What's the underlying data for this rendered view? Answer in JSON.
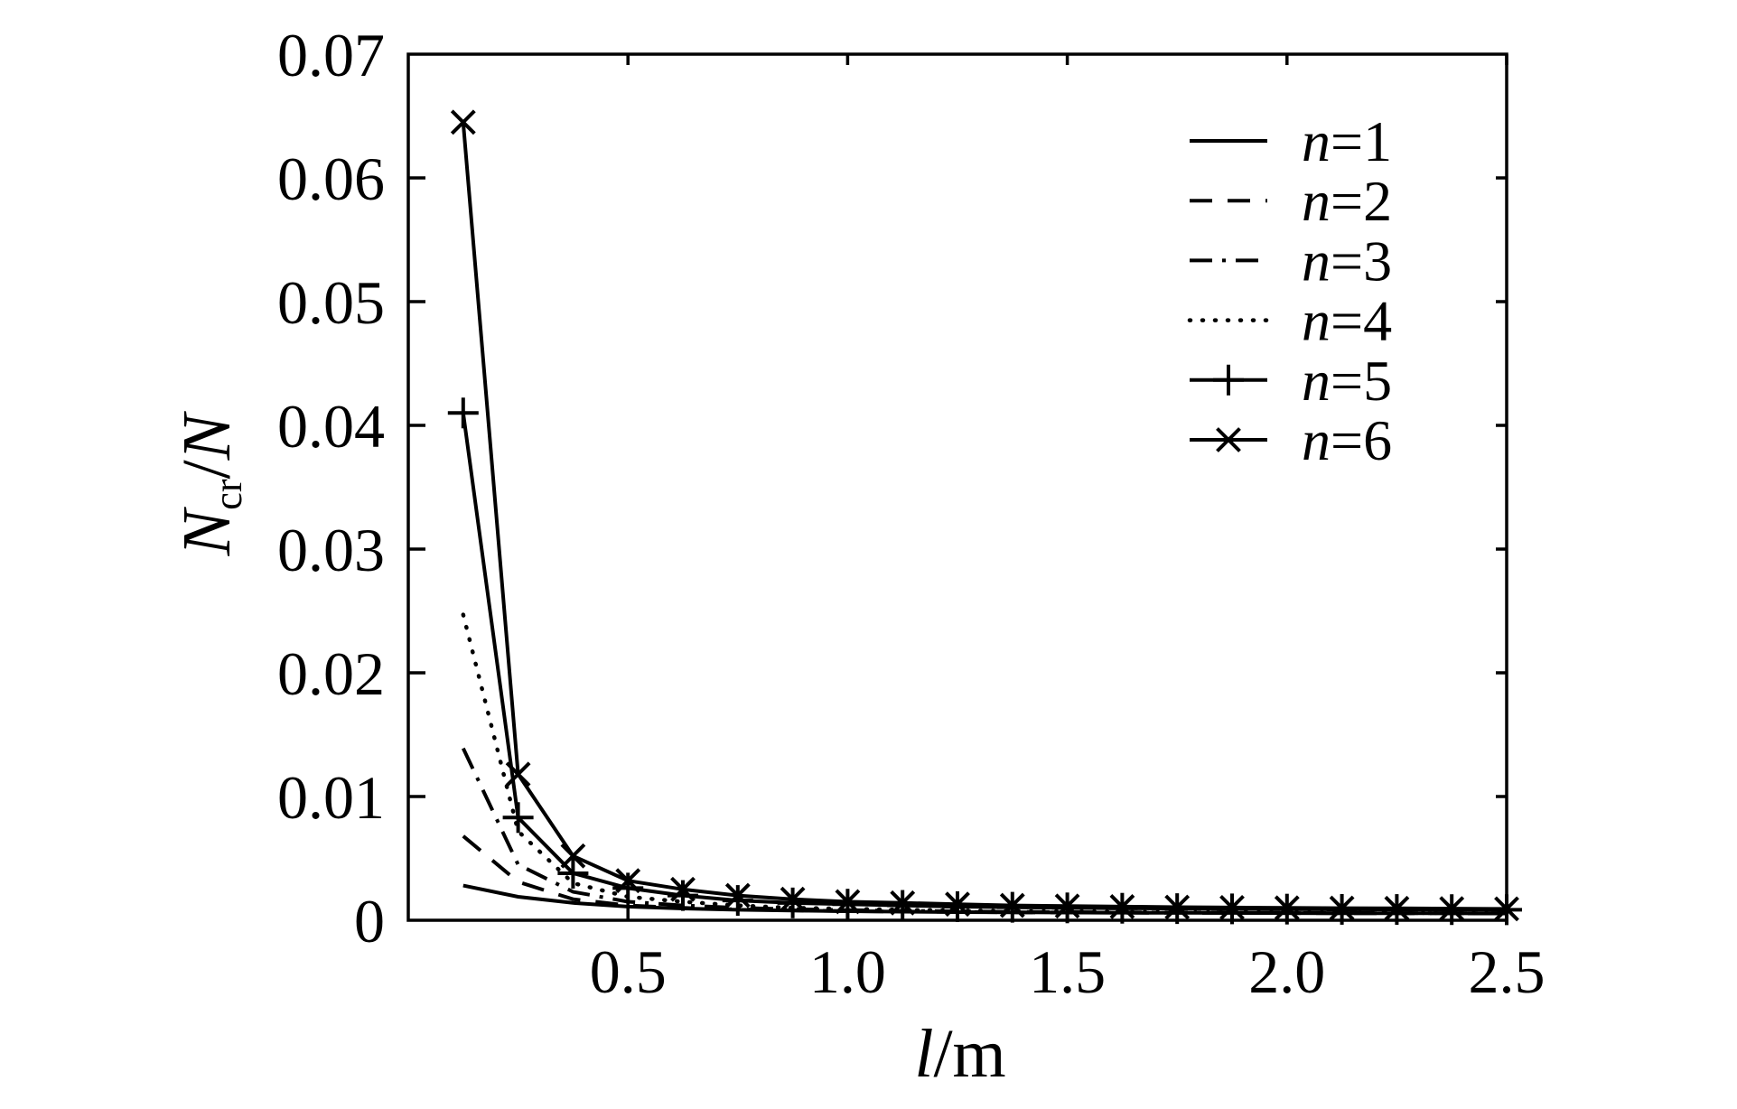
{
  "chart_data": {
    "type": "line",
    "title": "",
    "xlabel_parts": {
      "italic": "l",
      "rest": "/m"
    },
    "ylabel_parts": {
      "italic": "N",
      "sub": "cr",
      "slash": "/",
      "italic2": "N"
    },
    "xlim": [
      0,
      2.5
    ],
    "ylim": [
      0,
      0.07
    ],
    "grid": false,
    "legend_position": "top-right-inside",
    "colors": {
      "stroke": "#000000",
      "background": "#ffffff"
    },
    "x_ticks": [
      {
        "value": 0.5,
        "label": "0.5"
      },
      {
        "value": 1.0,
        "label": "1.0"
      },
      {
        "value": 1.5,
        "label": "1.5"
      },
      {
        "value": 2.0,
        "label": "2.0"
      },
      {
        "value": 2.5,
        "label": "2.5"
      }
    ],
    "y_ticks": [
      {
        "value": 0,
        "label": "0"
      },
      {
        "value": 0.01,
        "label": "0.01"
      },
      {
        "value": 0.02,
        "label": "0.02"
      },
      {
        "value": 0.03,
        "label": "0.03"
      },
      {
        "value": 0.04,
        "label": "0.04"
      },
      {
        "value": 0.05,
        "label": "0.05"
      },
      {
        "value": 0.06,
        "label": "0.06"
      },
      {
        "value": 0.07,
        "label": "0.07"
      }
    ],
    "x": [
      0.125,
      0.25,
      0.375,
      0.5,
      0.625,
      0.75,
      0.875,
      1.0,
      1.125,
      1.25,
      1.375,
      1.5,
      1.625,
      1.75,
      1.875,
      2.0,
      2.125,
      2.25,
      2.375,
      2.5
    ],
    "series": [
      {
        "name": "n=1",
        "line": "solid",
        "marker": "none",
        "values": [
          0.0028,
          0.0019,
          0.0014,
          0.0011,
          0.00095,
          0.00085,
          0.00078,
          0.00073,
          0.00069,
          0.00066,
          0.00064,
          0.00062,
          0.00061,
          0.0006,
          0.00059,
          0.00058,
          0.00057,
          0.00056,
          0.00056,
          0.00055
        ]
      },
      {
        "name": "n=2",
        "line": "dashed",
        "marker": "none",
        "values": [
          0.0068,
          0.0031,
          0.0017,
          0.0012,
          0.001,
          0.00088,
          0.0008,
          0.00074,
          0.0007,
          0.00067,
          0.00064,
          0.00062,
          0.00061,
          0.0006,
          0.00059,
          0.00058,
          0.00057,
          0.00056,
          0.00056,
          0.00055
        ]
      },
      {
        "name": "n=3",
        "line": "dashdot",
        "marker": "none",
        "values": [
          0.0139,
          0.0045,
          0.0023,
          0.0015,
          0.0012,
          0.001,
          0.0009,
          0.00082,
          0.00076,
          0.00072,
          0.00068,
          0.00066,
          0.00064,
          0.00062,
          0.00061,
          0.0006,
          0.00059,
          0.00058,
          0.00057,
          0.00056
        ]
      },
      {
        "name": "n=4",
        "line": "dotted",
        "marker": "none",
        "values": [
          0.0247,
          0.0072,
          0.003,
          0.0019,
          0.0015,
          0.0012,
          0.001,
          0.00092,
          0.00084,
          0.00078,
          0.00074,
          0.0007,
          0.00067,
          0.00065,
          0.00063,
          0.00062,
          0.00061,
          0.0006,
          0.00059,
          0.00058
        ]
      },
      {
        "name": "n=5",
        "line": "solid",
        "marker": "plus",
        "values": [
          0.041,
          0.0083,
          0.0038,
          0.0026,
          0.002,
          0.0016,
          0.0014,
          0.0013,
          0.0012,
          0.0011,
          0.00105,
          0.001,
          0.00097,
          0.00094,
          0.00092,
          0.0009,
          0.00088,
          0.00087,
          0.00086,
          0.00085
        ]
      },
      {
        "name": "n=6",
        "line": "solid",
        "marker": "cross",
        "values": [
          0.0645,
          0.0118,
          0.0052,
          0.0032,
          0.0025,
          0.002,
          0.0017,
          0.0015,
          0.0014,
          0.0013,
          0.0012,
          0.00115,
          0.0011,
          0.00106,
          0.00103,
          0.001,
          0.00098,
          0.00096,
          0.00094,
          0.00092
        ]
      }
    ]
  }
}
